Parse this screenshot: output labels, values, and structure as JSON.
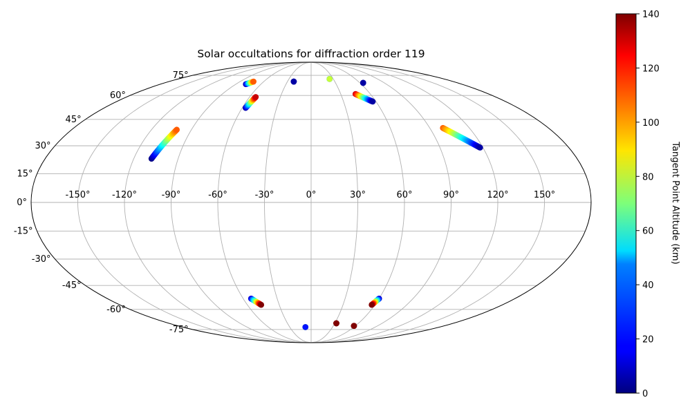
{
  "chart_data": {
    "type": "scatter",
    "projection": "mollweide",
    "title": "Solar occultations for diffraction order 119",
    "xlabel": "",
    "ylabel": "",
    "grid": true,
    "x_ticks": [
      "-150°",
      "-120°",
      "-90°",
      "-60°",
      "-30°",
      "0°",
      "30°",
      "60°",
      "90°",
      "120°",
      "150°"
    ],
    "y_ticks": [
      "-75°",
      "-60°",
      "-45°",
      "-30°",
      "-15°",
      "0°",
      "15°",
      "30°",
      "45°",
      "60°",
      "75°"
    ],
    "colorbar": {
      "label": "Tangent Point Altitude (km)",
      "colormap": "jet",
      "range": [
        0,
        140
      ],
      "ticks": [
        "0",
        "20",
        "40",
        "60",
        "80",
        "100",
        "120",
        "140"
      ]
    },
    "tracks": [
      {
        "lon_start": -108,
        "lat_start": 23,
        "alt_start": 0,
        "lon_end": -101,
        "lat_end": 39,
        "alt_end": 110
      },
      {
        "lon_start": -57,
        "lat_start": 52,
        "alt_start": 5,
        "lon_end": -54,
        "lat_end": 59,
        "alt_end": 130
      },
      {
        "lon_start": -78,
        "lat_start": 68,
        "alt_start": 5,
        "lon_end": -73,
        "lat_end": 70,
        "alt_end": 110
      },
      {
        "lon_start": -22,
        "lat_start": 70,
        "alt_start": 5,
        "lon_end": -22,
        "lat_end": 70,
        "alt_end": 5
      },
      {
        "lon_start": 25,
        "lat_start": 72,
        "alt_start": 5,
        "lon_end": 25,
        "lat_end": 72,
        "alt_end": 80
      },
      {
        "lon_start": 45,
        "lat_start": 61,
        "alt_start": 130,
        "lon_end": 57,
        "lat_end": 56,
        "alt_end": 5
      },
      {
        "lon_start": 64,
        "lat_start": 69,
        "alt_start": 5,
        "lon_end": 64,
        "lat_end": 69,
        "alt_end": 5
      },
      {
        "lon_start": 100,
        "lat_start": 40,
        "alt_start": 110,
        "lon_end": 118,
        "lat_end": 29,
        "alt_end": 5
      },
      {
        "lon_start": -53,
        "lat_start": -53,
        "alt_start": 10,
        "lon_end": -47,
        "lat_end": -57,
        "alt_end": 140
      },
      {
        "lon_start": -8,
        "lat_start": -73,
        "alt_start": 140,
        "lon_end": -8,
        "lat_end": -73,
        "alt_end": 20
      },
      {
        "lon_start": 32,
        "lat_start": -70,
        "alt_start": 140,
        "lon_end": 32,
        "lat_end": -70,
        "alt_end": 140
      },
      {
        "lon_start": 60,
        "lat_start": -53,
        "alt_start": 10,
        "lon_end": 57,
        "lat_end": -57,
        "alt_end": 140
      },
      {
        "lon_start": 58,
        "lat_start": -72,
        "alt_start": 140,
        "lon_end": 58,
        "lat_end": -72,
        "alt_end": 140
      }
    ]
  }
}
